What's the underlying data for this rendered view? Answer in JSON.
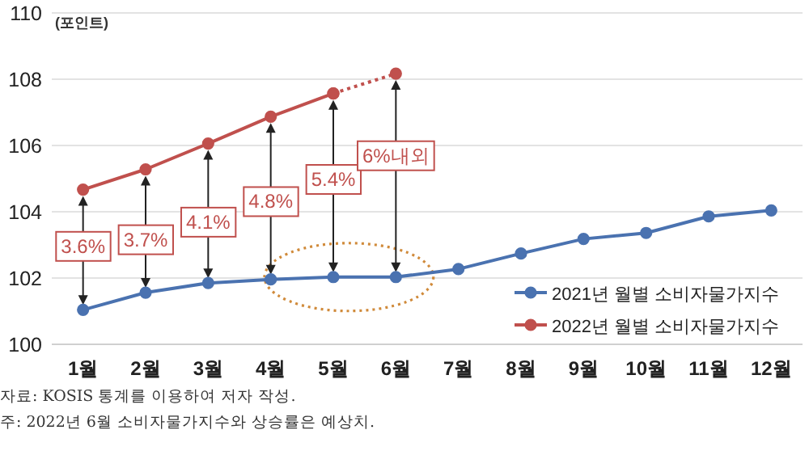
{
  "chart_data": {
    "type": "line",
    "ylabel": "(포인트)",
    "categories": [
      "1월",
      "2월",
      "3월",
      "4월",
      "5월",
      "6월",
      "7월",
      "8월",
      "9월",
      "10월",
      "11월",
      "12월"
    ],
    "ylim": [
      100,
      110
    ],
    "yticks": [
      100,
      102,
      104,
      106,
      108,
      110
    ],
    "grid": "y",
    "legend": "bottom right",
    "marker": "circle",
    "series": [
      {
        "name": "2021년 월별 소비자물가지수",
        "color": "#4a72b0",
        "values": [
          101.04,
          101.56,
          101.85,
          101.96,
          102.03,
          102.03,
          102.27,
          102.74,
          103.18,
          103.36,
          103.86,
          104.04
        ]
      },
      {
        "name": "2022년 월별 소비자물가지수",
        "color": "#c0504d",
        "values": [
          104.67,
          105.28,
          106.06,
          106.87,
          107.57,
          null,
          null,
          null,
          null,
          null,
          null,
          null
        ]
      },
      {
        "color": "#c0504d",
        "line_style": "dotted",
        "values": [
          null,
          null,
          null,
          null,
          107.57,
          108.17,
          null,
          null,
          null,
          null,
          null,
          null
        ]
      }
    ],
    "annotations": [
      {
        "text": "3.6%",
        "x": "1월",
        "y": 102.98
      },
      {
        "text": "3.7%",
        "x": "2월",
        "y": 103.18
      },
      {
        "text": "4.1%",
        "x": "3월",
        "y": 103.71
      },
      {
        "text": "4.8%",
        "x": "4월",
        "y": 104.33
      },
      {
        "text": "5.4%",
        "x": "5월",
        "y": 105.0
      },
      "6%내외",
      "자료: KOSIS 통계를 이용하여 저자 작성.",
      "주: 2022년 6월 소비자물가지수와 상승률은 예상치."
    ]
  }
}
